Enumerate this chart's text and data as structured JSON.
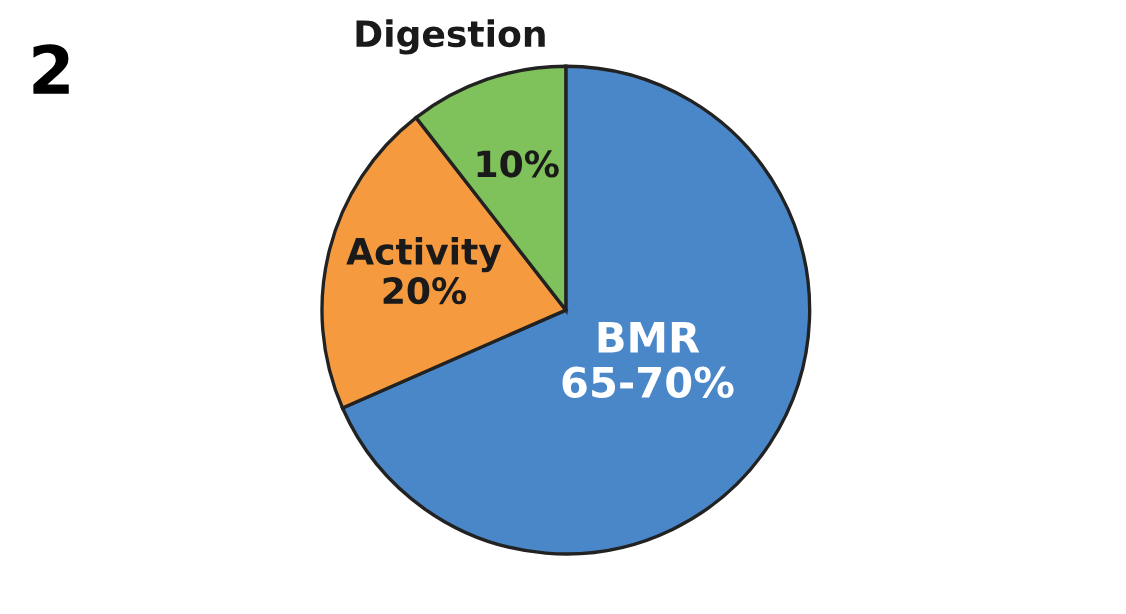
{
  "chart_data": {
    "type": "pie",
    "title": "2",
    "categories": [
      "BMR",
      "Activity",
      "Digestion"
    ],
    "values": [
      65,
      20,
      10
    ],
    "value_labels": [
      "65-70%",
      "20%",
      "10%"
    ],
    "colors": [
      "#4a87c9",
      "#f59a3e",
      "#7fc15a"
    ],
    "legend": false
  }
}
